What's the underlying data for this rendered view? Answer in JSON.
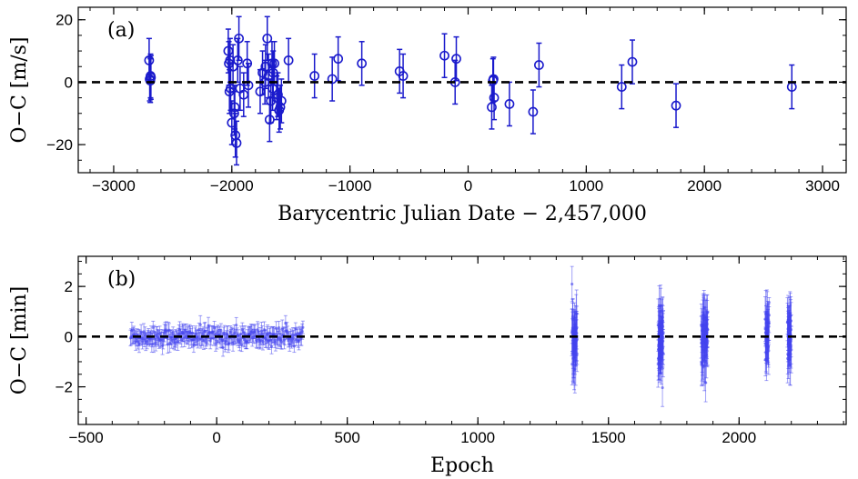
{
  "chart_data": [
    {
      "type": "scatter",
      "panel_label": "(a)",
      "xlabel": "Barycentric Julian Date − 2,457,000",
      "ylabel": "O−C [m/s]",
      "xlim": [
        -3300,
        3200
      ],
      "ylim": [
        -29,
        24
      ],
      "xticks": [
        -3000,
        -2000,
        -1000,
        0,
        1000,
        2000,
        3000
      ],
      "yticks": [
        -20,
        0,
        20
      ],
      "reference_line_y": 0,
      "grid": false,
      "marker": "open-circle",
      "color": "#1a1acc",
      "series": [
        {
          "x": [
            -2700,
            -2695,
            -2690,
            -2688,
            -2685,
            -2030,
            -2025,
            -2020,
            -2015,
            -2010,
            -2000,
            -1990,
            -1980,
            -1975,
            -1970,
            -1960,
            -1950,
            -1940,
            -1930,
            -1900,
            -1870,
            -1860,
            -1760,
            -1740,
            -1720,
            -1715,
            -1700,
            -1690,
            -1680,
            -1670,
            -1660,
            -1655,
            -1650,
            -1640,
            -1620,
            -1610,
            -1600,
            -1590,
            -1580,
            -1520,
            -1300,
            -1150,
            -1100,
            -900,
            -580,
            -550,
            -200,
            -110,
            -100,
            200,
            210,
            215,
            220,
            350,
            550,
            600,
            1300,
            1390,
            1760,
            2740
          ],
          "y": [
            7,
            1,
            0.5,
            2,
            1.5,
            10,
            6,
            -3,
            7,
            -2,
            -13,
            5,
            -10,
            -8,
            -17,
            -19.5,
            7,
            14,
            -2,
            -4,
            6,
            -1,
            -3,
            3,
            0,
            5,
            14,
            2,
            -12,
            -6,
            6,
            -2,
            3,
            6,
            -5,
            -4,
            -9,
            -8,
            -6,
            7,
            2,
            1,
            7.5,
            6,
            3.5,
            2,
            8.5,
            0,
            7.5,
            -8,
            0.5,
            1,
            -5,
            -7,
            -9.5,
            5.5,
            -1.5,
            6.5,
            -7.5,
            -1.5
          ],
          "err": [
            7,
            7,
            7,
            7,
            7,
            7,
            7,
            7,
            7,
            7,
            7,
            7,
            7,
            7,
            7,
            7,
            7,
            7,
            7,
            7,
            7,
            7,
            7,
            7,
            7,
            7,
            7,
            7,
            7,
            7,
            7,
            7,
            7,
            7,
            7,
            7,
            7,
            7,
            7,
            7,
            7,
            7,
            7,
            7,
            7,
            7,
            7,
            7,
            7,
            7,
            7,
            7,
            7,
            7,
            7,
            7,
            7,
            7,
            7,
            7
          ]
        }
      ]
    },
    {
      "type": "scatter",
      "panel_label": "(b)",
      "xlabel": "Epoch",
      "ylabel": "O−C [min]",
      "xlim": [
        -530,
        2410
      ],
      "ylim": [
        -3.5,
        3.2
      ],
      "xticks": [
        -500,
        0,
        500,
        1000,
        1500,
        2000
      ],
      "yticks": [
        -2,
        0,
        2
      ],
      "reference_line_y": 0,
      "grid": false,
      "marker": "small-dot",
      "color": "#4444ee",
      "groups": [
        {
          "x_range": [
            -330,
            330
          ],
          "center": 0.0,
          "spread": 0.18,
          "err": 0.3,
          "count": 260
        },
        {
          "x_range": [
            1360,
            1380
          ],
          "center": 0.0,
          "spread": 0.55,
          "err": 0.85,
          "count": 45
        },
        {
          "x_range": [
            1690,
            1710
          ],
          "center": 0.0,
          "spread": 0.6,
          "err": 0.9,
          "count": 55
        },
        {
          "x_range": [
            1855,
            1880
          ],
          "center": 0.0,
          "spread": 0.55,
          "err": 0.85,
          "count": 55
        },
        {
          "x_range": [
            2100,
            2115
          ],
          "center": 0.0,
          "spread": 0.5,
          "err": 0.8,
          "count": 35
        },
        {
          "x_range": [
            2185,
            2200
          ],
          "center": 0.0,
          "spread": 0.55,
          "err": 0.9,
          "count": 35
        }
      ]
    }
  ]
}
